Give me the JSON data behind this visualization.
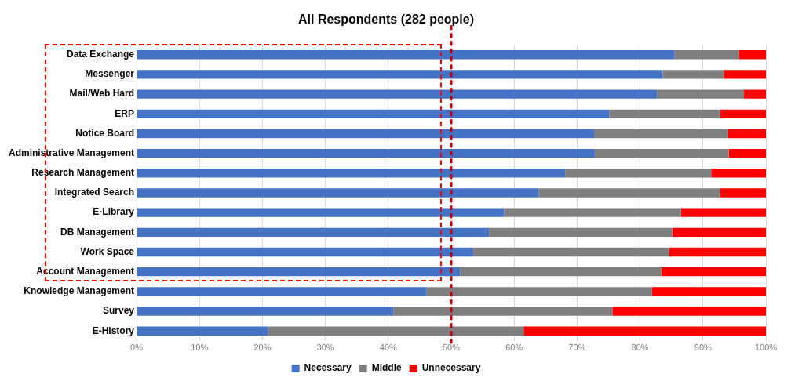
{
  "chart_data": {
    "type": "bar",
    "orientation": "horizontal",
    "stacked": true,
    "title": "All Respondents (282 people)",
    "categories": [
      "Data Exchange",
      "Messenger",
      "Mail/Web Hard",
      "ERP",
      "Notice Board",
      "Administrative Management",
      "Research Management",
      "Integrated Search",
      "E-Library",
      "DB Management",
      "Work Space",
      "Account Management",
      "Knowledge Management",
      "Survey",
      "E-History"
    ],
    "series": [
      {
        "name": "Necessary",
        "color": "#4472c4",
        "values": [
          85.5,
          83.6,
          82.7,
          75.1,
          72.7,
          72.8,
          68.1,
          63.9,
          58.4,
          56.0,
          53.5,
          51.4,
          46.1,
          40.8,
          20.9
        ]
      },
      {
        "name": "Middle",
        "color": "#7f7f7f",
        "values": [
          10.2,
          9.7,
          13.8,
          17.6,
          21.3,
          21.3,
          23.2,
          28.8,
          28.1,
          29.1,
          31.1,
          32.0,
          35.8,
          34.8,
          40.6
        ]
      },
      {
        "name": "Unnecessary",
        "color": "#ff0000",
        "values": [
          4.3,
          6.7,
          3.5,
          7.3,
          6.0,
          5.9,
          8.7,
          7.3,
          13.5,
          14.9,
          15.4,
          16.6,
          18.1,
          24.4,
          38.5
        ]
      }
    ],
    "xlim": [
      0,
      100
    ],
    "xticks": [
      {
        "value": 0,
        "label": "0%"
      },
      {
        "value": 10,
        "label": "10%"
      },
      {
        "value": 20,
        "label": "20%"
      },
      {
        "value": 30,
        "label": "30%"
      },
      {
        "value": 40,
        "label": "40%"
      },
      {
        "value": 50,
        "label": "50%"
      },
      {
        "value": 60,
        "label": "60%"
      },
      {
        "value": 70,
        "label": "70%"
      },
      {
        "value": 80,
        "label": "80%"
      },
      {
        "value": 90,
        "label": "90%"
      },
      {
        "value": 100,
        "label": "100%"
      }
    ],
    "ref_lines": [
      {
        "axis": "x",
        "value": 50,
        "color": "#c00000",
        "line_style": "dashed"
      }
    ],
    "grid": "x",
    "legend": "bottom"
  }
}
